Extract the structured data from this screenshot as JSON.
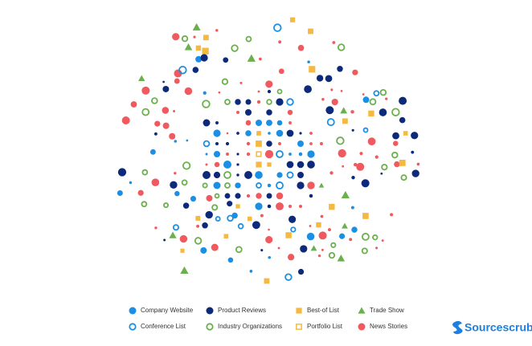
{
  "legend": [
    {
      "label": "Company Website"
    },
    {
      "label": "Product Reviews"
    },
    {
      "label": "Best-of List"
    },
    {
      "label": "Trade Show"
    },
    {
      "label": "Conference List"
    },
    {
      "label": "Industry Organizations"
    },
    {
      "label": "Portfolio List"
    },
    {
      "label": "News Stories"
    }
  ],
  "brand": "Sourcescrub"
}
